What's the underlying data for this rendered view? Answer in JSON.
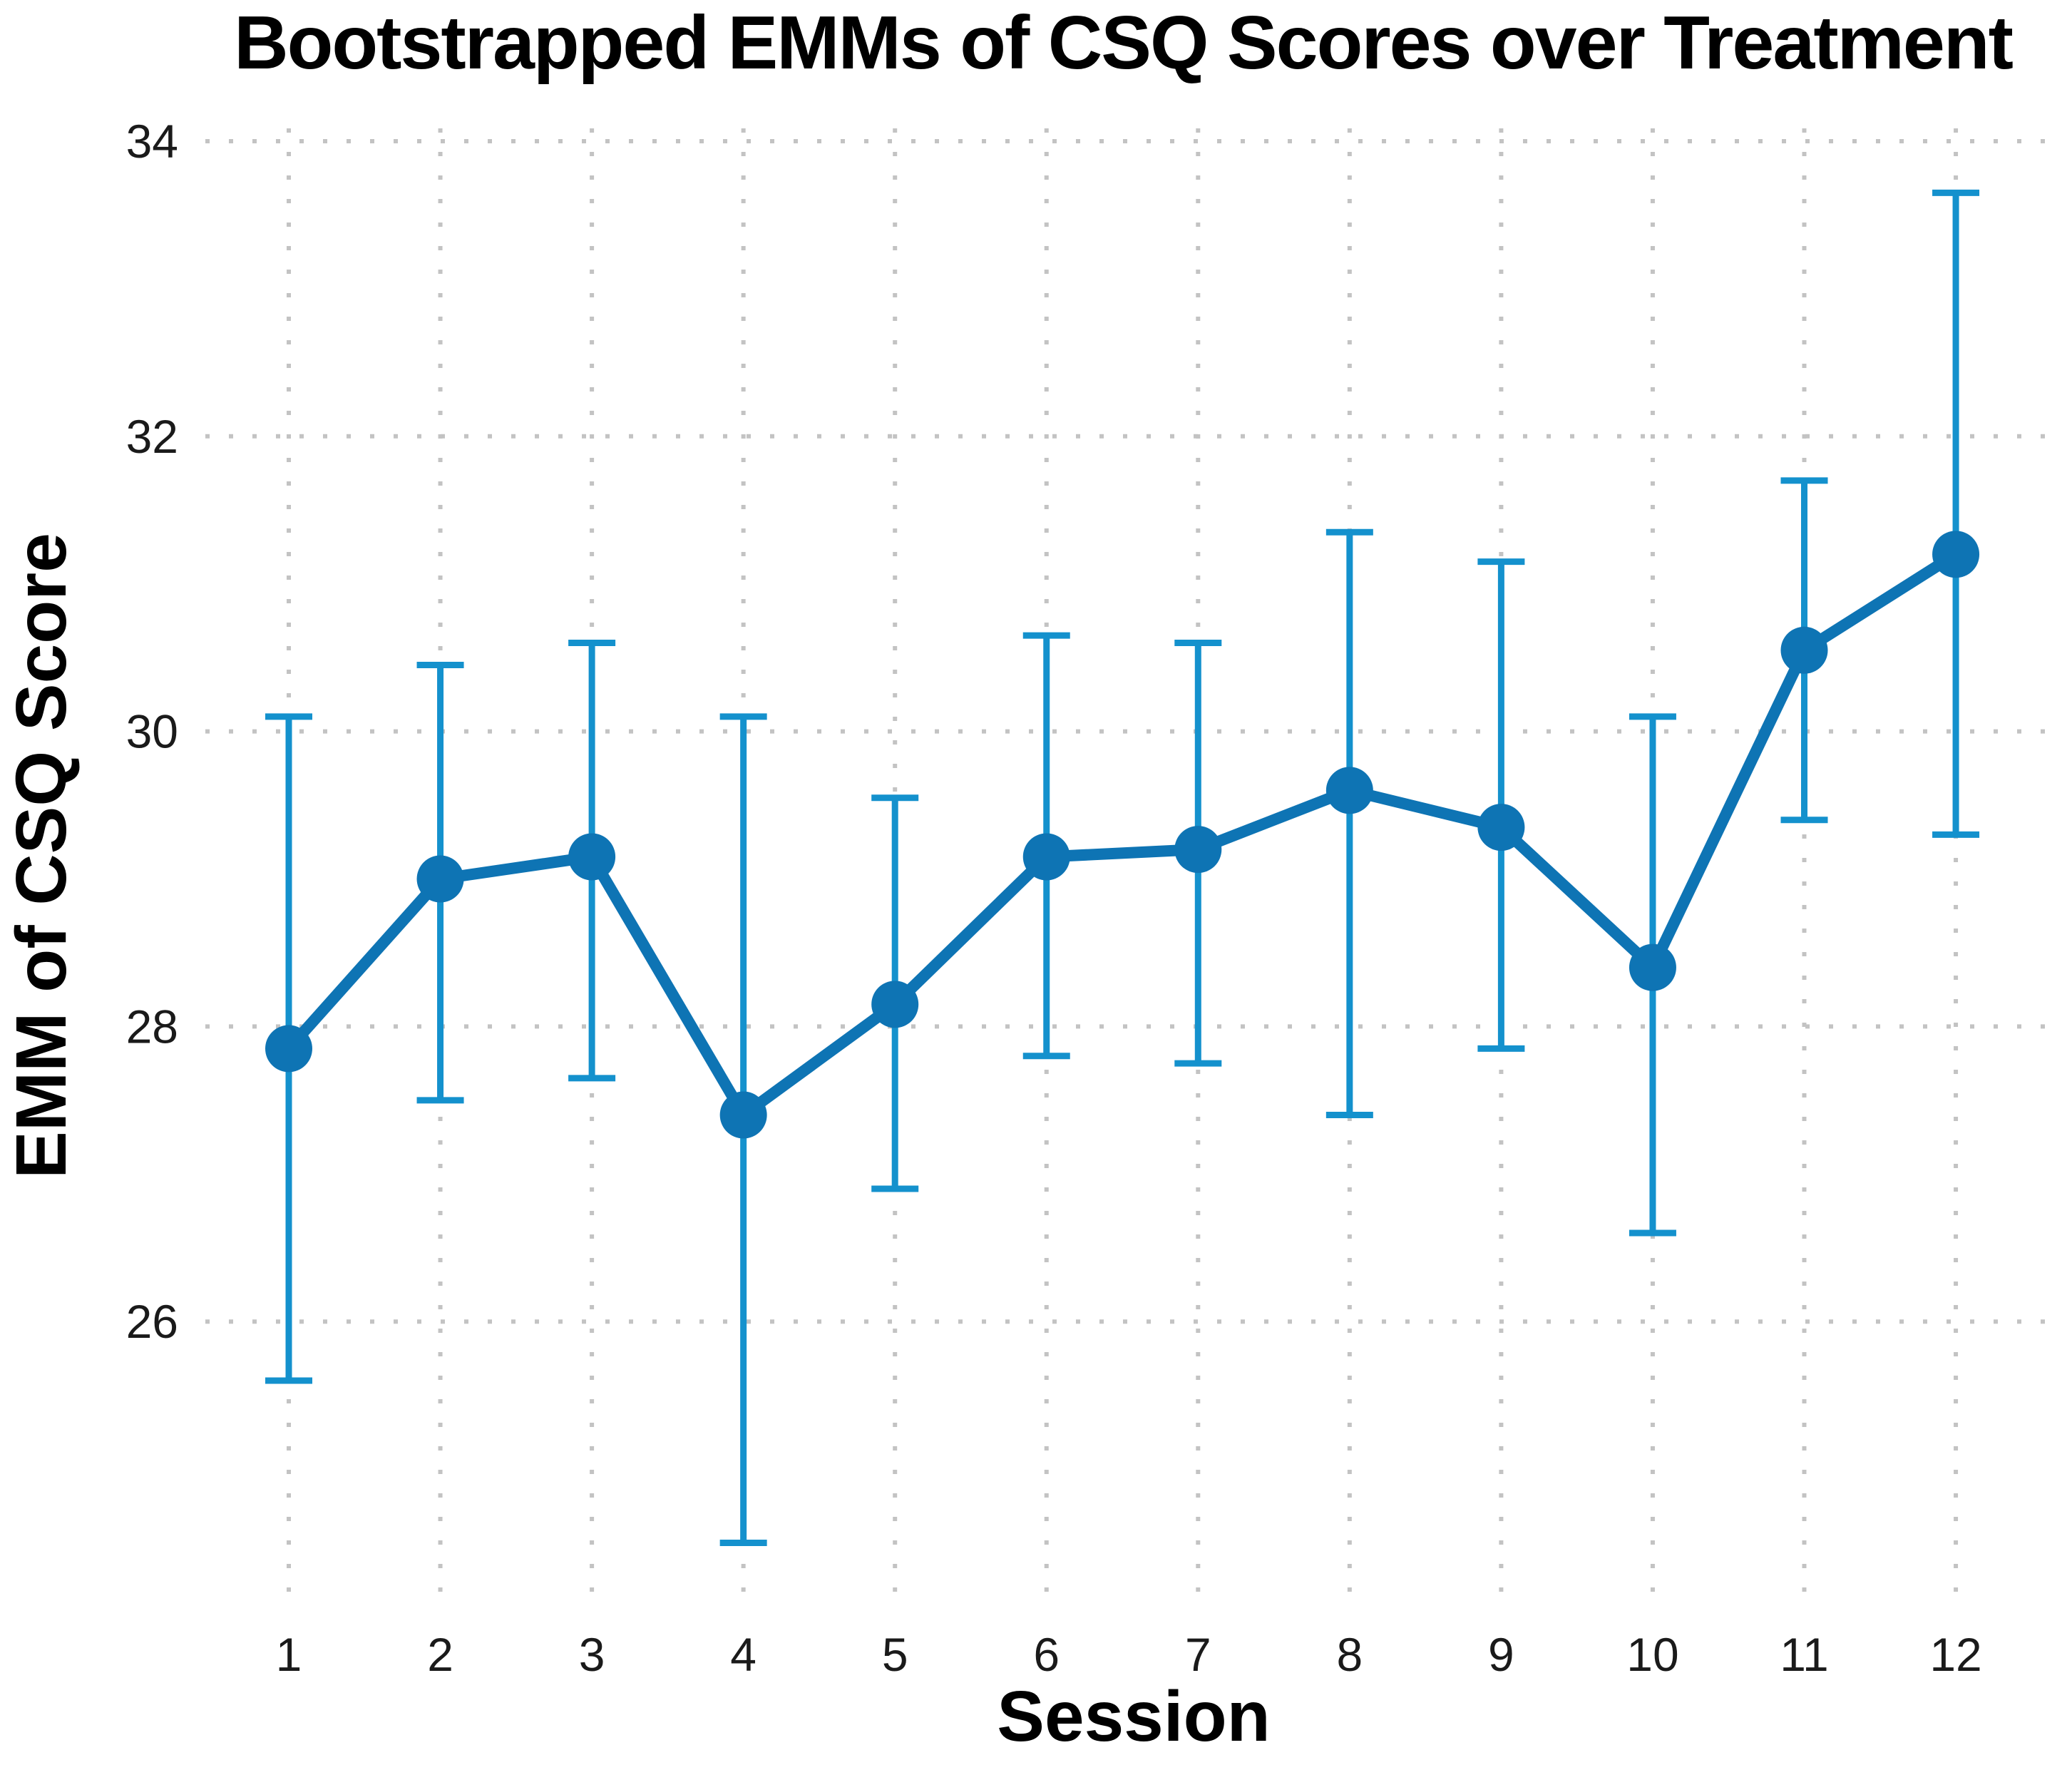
{
  "chart_data": {
    "type": "line",
    "title": "Bootstrapped EMMs of CSQ Scores over Treatment",
    "xlabel": "Session",
    "ylabel": "EMM of CSQ Score",
    "x": [
      1,
      2,
      3,
      4,
      5,
      6,
      7,
      8,
      9,
      10,
      11,
      12
    ],
    "series": [
      {
        "name": "EMM of CSQ Score",
        "values": [
          27.85,
          29.0,
          29.15,
          27.4,
          28.15,
          29.15,
          29.2,
          29.6,
          29.35,
          28.4,
          30.55,
          31.2
        ],
        "ci_lower": [
          25.6,
          27.5,
          27.65,
          24.5,
          26.9,
          27.8,
          27.75,
          27.4,
          27.85,
          26.6,
          29.4,
          29.3
        ],
        "ci_upper": [
          30.1,
          30.45,
          30.6,
          30.1,
          29.55,
          30.65,
          30.6,
          31.35,
          31.15,
          30.1,
          31.7,
          33.65
        ]
      }
    ],
    "error_bars": true,
    "yticks": [
      26,
      28,
      30,
      32,
      34
    ],
    "xticks": [
      1,
      2,
      3,
      4,
      5,
      6,
      7,
      8,
      9,
      10,
      11,
      12
    ],
    "ylim": [
      24.1,
      34.1
    ],
    "xlim": [
      0.5,
      12.5
    ],
    "grid": "dotted-both-axes",
    "legend_position": "none"
  },
  "colors": {
    "line": "#0e74b4",
    "marker": "#0e74b4",
    "error_bar": "#1491cd",
    "grid": "#c3c3c3",
    "tick_text": "#1a1a1a",
    "label_text": "#000000",
    "background": "#ffffff"
  }
}
